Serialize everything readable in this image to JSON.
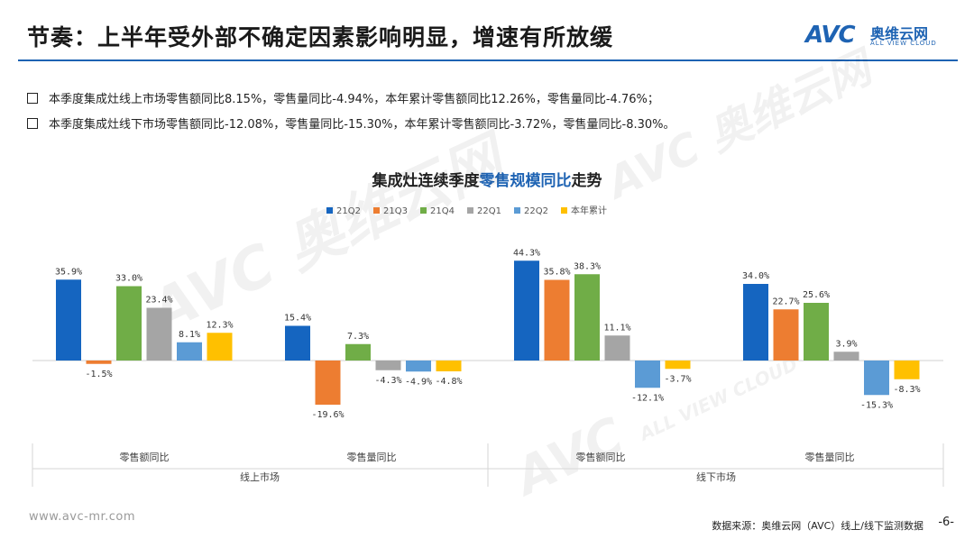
{
  "header": {
    "title": "节奏：上半年受外部不确定因素影响明显，增速有所放缓",
    "logo_mark": "AVC",
    "logo_cn": "奥维云网",
    "logo_en": "ALL VIEW CLOUD"
  },
  "bullets": [
    "本季度集成灶线上市场零售额同比8.15%，零售量同比-4.94%，本年累计零售额同比12.26%，零售量同比-4.76%；",
    "本季度集成灶线下市场零售额同比-12.08%，零售量同比-15.30%，本年累计零售额同比-3.72%，零售量同比-8.30%。"
  ],
  "chart_title": {
    "part1": "集成灶连续季度",
    "part2": "零售规模同比",
    "part3": "走势"
  },
  "chart_data": {
    "type": "bar",
    "colors": [
      "#1565c0",
      "#ed7d31",
      "#70ad47",
      "#a5a5a5",
      "#5b9bd5",
      "#ffc000"
    ],
    "series": [
      {
        "name": "21Q2",
        "values": [
          35.9,
          15.4,
          44.3,
          34.0
        ]
      },
      {
        "name": "21Q3",
        "values": [
          -1.5,
          -19.6,
          35.8,
          22.7
        ]
      },
      {
        "name": "21Q4",
        "values": [
          33.0,
          7.3,
          38.3,
          25.6
        ]
      },
      {
        "name": "22Q1",
        "values": [
          23.4,
          -4.3,
          11.1,
          3.9
        ]
      },
      {
        "name": "22Q2",
        "values": [
          8.1,
          -4.9,
          -12.1,
          -15.3
        ]
      },
      {
        "name": "本年累计",
        "values": [
          12.3,
          -4.8,
          -3.7,
          -8.3
        ]
      }
    ],
    "categories": [
      "零售额同比",
      "零售量同比",
      "零售额同比",
      "零售量同比"
    ],
    "groups": [
      "线上市场",
      "线下市场"
    ],
    "value_suffix": "%",
    "legend_position": "top"
  },
  "watermark": {
    "mark": "AVC",
    "cn": "奥维云网",
    "en": "ALL VIEW CLOUD"
  },
  "footer": {
    "website": "www.avc-mr.com",
    "source": "数据来源：奥维云网（AVC）线上/线下监测数据",
    "page": "-6-"
  }
}
